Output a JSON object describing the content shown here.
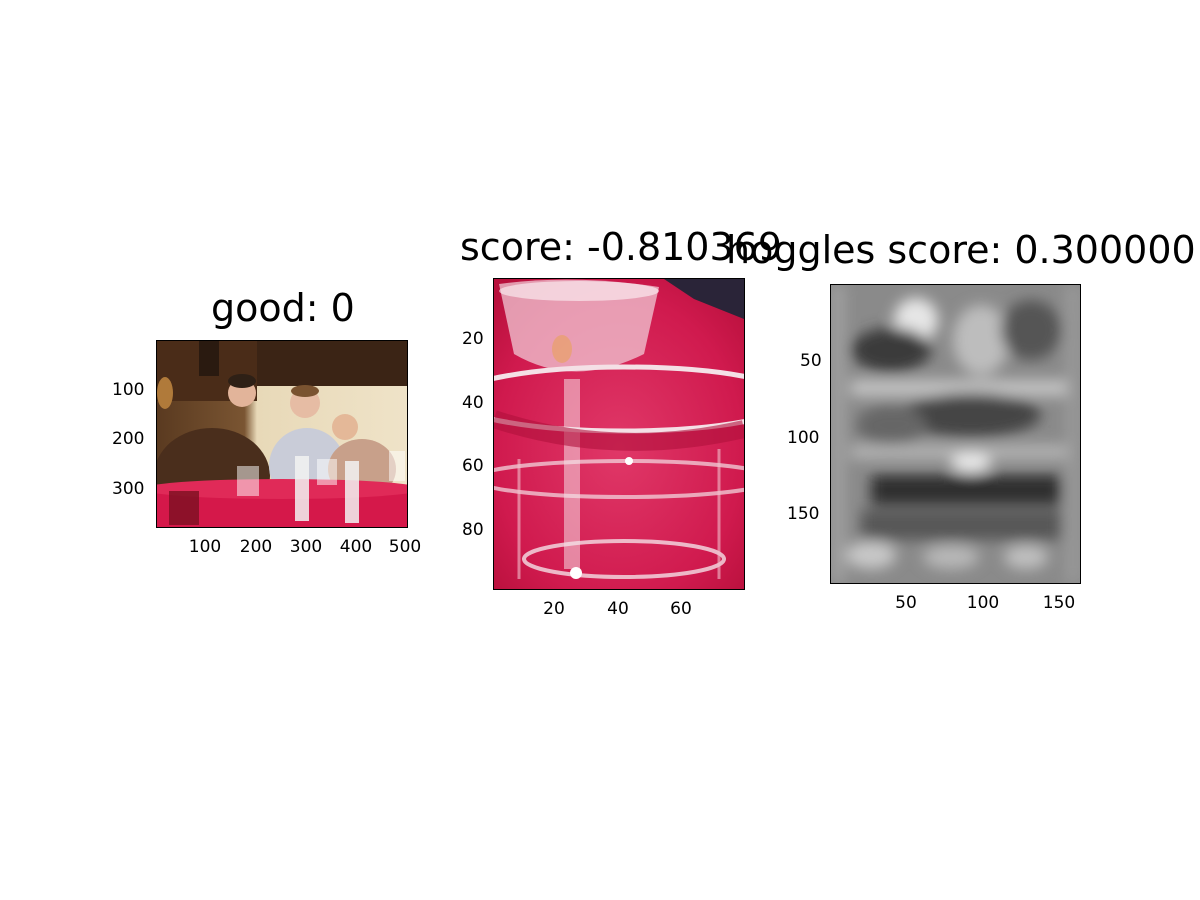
{
  "figure": {
    "panels": [
      {
        "title": "good: 0",
        "image_name": "family-dinner-photo",
        "y_ticks": [
          "100",
          "200",
          "300"
        ],
        "x_ticks": [
          "100",
          "200",
          "300",
          "400",
          "500"
        ]
      },
      {
        "title": "score: -0.810369",
        "image_name": "wine-glass-crop",
        "y_ticks": [
          "20",
          "40",
          "60",
          "80"
        ],
        "x_ticks": [
          "20",
          "40",
          "60"
        ]
      },
      {
        "title": "hoggles score: 0.300000",
        "image_name": "hoggles-reconstruction",
        "y_ticks": [
          "50",
          "100",
          "150"
        ],
        "x_ticks": [
          "50",
          "100",
          "150"
        ]
      }
    ]
  }
}
